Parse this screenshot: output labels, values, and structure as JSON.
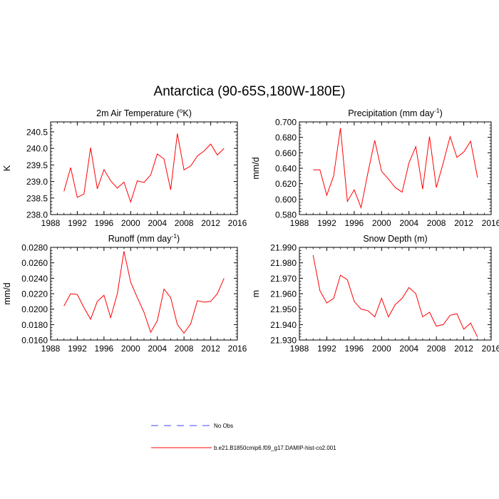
{
  "figure": {
    "title": "Antarctica (90-65S,180W-180E)"
  },
  "legend": {
    "entries": [
      {
        "label": "No Obs",
        "color": "#4444ff",
        "style": "dashed"
      },
      {
        "label": "b.e21.B1850cmip6.f09_g17.DAMIP-hist-co2.001",
        "color": "#ff0000",
        "style": "solid"
      }
    ]
  },
  "chart_data": [
    {
      "type": "line",
      "title_main": "2m Air Temperature (",
      "title_sup": "o",
      "title_end": "K)",
      "ylabel": "K",
      "xlim": [
        1988,
        2016
      ],
      "ylim": [
        238.0,
        240.8
      ],
      "xticks": [
        "1988",
        "1992",
        "1996",
        "2000",
        "2004",
        "2008",
        "2012",
        "2016"
      ],
      "yticks": [
        "238.0",
        "238.5",
        "239.0",
        "239.5",
        "240.0",
        "240.5"
      ],
      "color": "#ff0000",
      "x": [
        1990,
        1991,
        1992,
        1993,
        1994,
        1995,
        1996,
        1997,
        1998,
        1999,
        2000,
        2001,
        2002,
        2003,
        2004,
        2005,
        2006,
        2007,
        2008,
        2009,
        2010,
        2011,
        2012,
        2013,
        2014
      ],
      "y": [
        238.7,
        239.42,
        238.52,
        238.62,
        240.02,
        238.78,
        239.36,
        239.02,
        238.8,
        238.98,
        238.38,
        239.02,
        238.97,
        239.2,
        239.83,
        239.68,
        238.75,
        240.45,
        239.35,
        239.47,
        239.77,
        239.92,
        240.13,
        239.8,
        240.0
      ]
    },
    {
      "type": "line",
      "title_main": "Precipitation (mm day",
      "title_sup": "-1",
      "title_end": ")",
      "ylabel": "mm/d",
      "xlim": [
        1988,
        2016
      ],
      "ylim": [
        0.58,
        0.7
      ],
      "xticks": [
        "1988",
        "1992",
        "1996",
        "2000",
        "2004",
        "2008",
        "2012",
        "2016"
      ],
      "yticks": [
        "0.580",
        "0.600",
        "0.620",
        "0.640",
        "0.660",
        "0.680",
        "0.700"
      ],
      "color": "#ff0000",
      "x": [
        1990,
        1991,
        1992,
        1993,
        1994,
        1995,
        1996,
        1997,
        1998,
        1999,
        2000,
        2001,
        2002,
        2003,
        2004,
        2005,
        2006,
        2007,
        2008,
        2009,
        2010,
        2011,
        2012,
        2013,
        2014
      ],
      "y": [
        0.638,
        0.638,
        0.605,
        0.63,
        0.692,
        0.597,
        0.612,
        0.589,
        0.634,
        0.676,
        0.636,
        0.626,
        0.615,
        0.609,
        0.647,
        0.668,
        0.613,
        0.681,
        0.615,
        0.647,
        0.681,
        0.654,
        0.661,
        0.675,
        0.628
      ]
    },
    {
      "type": "line",
      "title_main": "Runoff (mm day",
      "title_sup": "-1",
      "title_end": ")",
      "ylabel": "mm/d",
      "xlim": [
        1988,
        2016
      ],
      "ylim": [
        0.016,
        0.028
      ],
      "xticks": [
        "1988",
        "1992",
        "1996",
        "2000",
        "2004",
        "2008",
        "2012",
        "2016"
      ],
      "yticks": [
        "0.0160",
        "0.0180",
        "0.0200",
        "0.0220",
        "0.0240",
        "0.0260",
        "0.0280"
      ],
      "color": "#ff0000",
      "x": [
        1990,
        1991,
        1992,
        1993,
        1994,
        1995,
        1996,
        1997,
        1998,
        1999,
        2000,
        2001,
        2002,
        2003,
        2004,
        2005,
        2006,
        2007,
        2008,
        2009,
        2010,
        2011,
        2012,
        2013,
        2014
      ],
      "y": [
        0.0204,
        0.022,
        0.0219,
        0.0202,
        0.0187,
        0.021,
        0.0218,
        0.0189,
        0.022,
        0.0275,
        0.0235,
        0.0215,
        0.0196,
        0.017,
        0.0185,
        0.0226,
        0.0215,
        0.018,
        0.0169,
        0.0181,
        0.0211,
        0.0209,
        0.021,
        0.022,
        0.024
      ]
    },
    {
      "type": "line",
      "title_main": "Snow Depth (m)",
      "title_sup": "",
      "title_end": "",
      "ylabel": "m",
      "xlim": [
        1988,
        2016
      ],
      "ylim": [
        21.93,
        21.99
      ],
      "xticks": [
        "1988",
        "1992",
        "1996",
        "2000",
        "2004",
        "2008",
        "2012",
        "2016"
      ],
      "yticks": [
        "21.930",
        "21.940",
        "21.950",
        "21.960",
        "21.970",
        "21.980",
        "21.990"
      ],
      "color": "#ff0000",
      "x": [
        1990,
        1991,
        1992,
        1993,
        1994,
        1995,
        1996,
        1997,
        1998,
        1999,
        2000,
        2001,
        2002,
        2003,
        2004,
        2005,
        2006,
        2007,
        2008,
        2009,
        2010,
        2011,
        2012,
        2013,
        2014
      ],
      "y": [
        21.985,
        21.962,
        21.954,
        21.957,
        21.972,
        21.969,
        21.955,
        21.95,
        21.949,
        21.945,
        21.957,
        21.945,
        21.953,
        21.957,
        21.964,
        21.96,
        21.945,
        21.948,
        21.939,
        21.94,
        21.946,
        21.947,
        21.937,
        21.941,
        21.932
      ]
    }
  ]
}
